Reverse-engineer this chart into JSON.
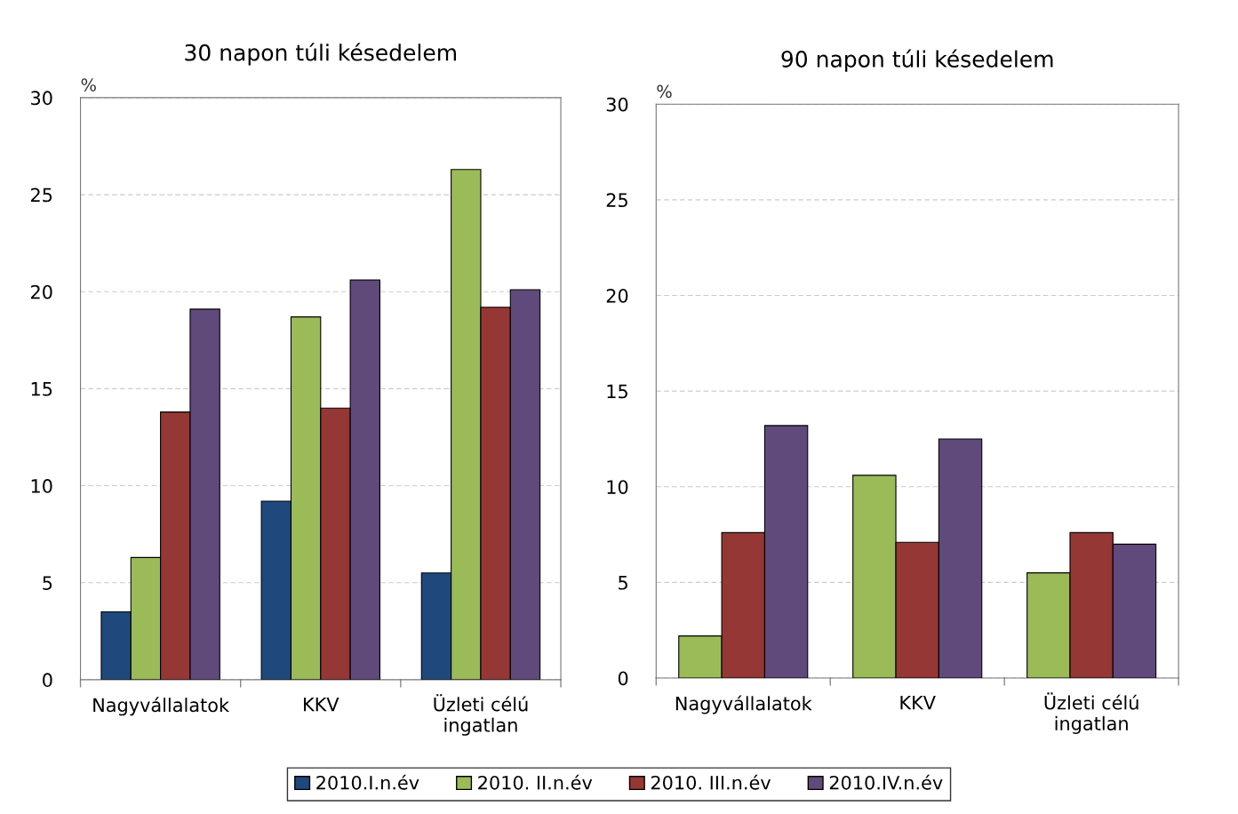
{
  "chart_data": [
    {
      "type": "bar",
      "title": "30 napon túli késedelem",
      "ylabel": "%",
      "categories": [
        "Nagyvállalatok",
        "KKV",
        "Üzleti célú\ningatlan"
      ],
      "series": [
        {
          "name": "2010.I.n.év",
          "color": "#1f497d",
          "values": [
            3.5,
            9.2,
            5.5
          ]
        },
        {
          "name": "2010. II.n.év",
          "color": "#9bbb59",
          "values": [
            6.3,
            18.7,
            26.3
          ]
        },
        {
          "name": "2010. III.n.év",
          "color": "#953735",
          "values": [
            13.8,
            14.0,
            19.2
          ]
        },
        {
          "name": "2010.IV.n.év",
          "color": "#604a7b",
          "values": [
            19.1,
            20.6,
            20.1
          ]
        }
      ],
      "ylim": [
        0,
        30
      ],
      "yticks": [
        0,
        5,
        10,
        15,
        20,
        25,
        30
      ],
      "grid": "y",
      "legend": "bottom"
    },
    {
      "type": "bar",
      "title": "90 napon túli késedelem",
      "ylabel": "%",
      "categories": [
        "Nagyvállalatok",
        "KKV",
        "Üzleti célú\ningatlan"
      ],
      "series": [
        {
          "name": "2010. II.n.év",
          "color": "#9bbb59",
          "values": [
            2.2,
            10.6,
            5.5
          ]
        },
        {
          "name": "2010. III.n.év",
          "color": "#953735",
          "values": [
            7.6,
            7.1,
            7.6
          ]
        },
        {
          "name": "2010.IV.n.év",
          "color": "#604a7b",
          "values": [
            13.2,
            12.5,
            7.0
          ]
        }
      ],
      "ylim": [
        0,
        30
      ],
      "yticks": [
        0,
        5,
        10,
        15,
        20,
        25,
        30
      ],
      "grid": "y",
      "legend": "bottom"
    }
  ]
}
